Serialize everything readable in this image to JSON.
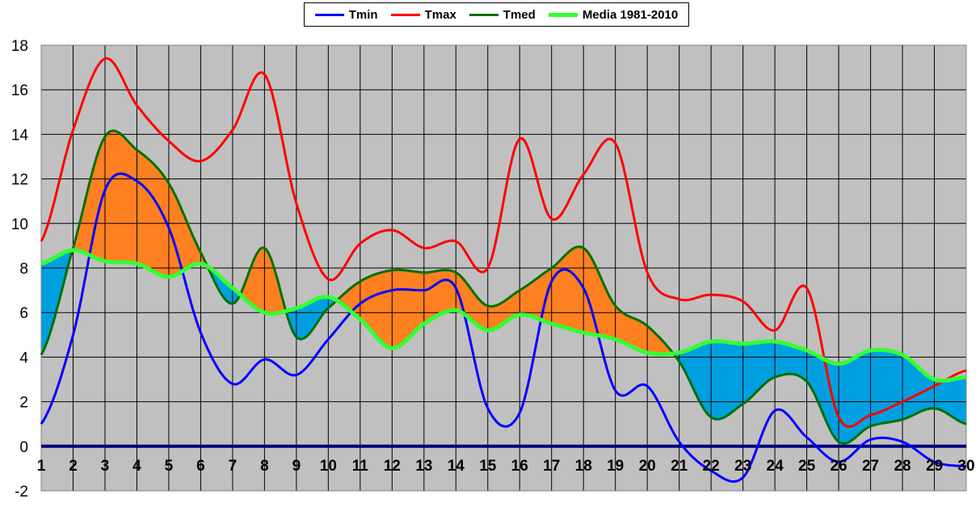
{
  "legend": {
    "tmin": "Tmin",
    "tmax": "Tmax",
    "tmed": "Tmed",
    "media": "Media 1981-2010"
  },
  "colors": {
    "tmin": "#0000ff",
    "tmax": "#ff0000",
    "tmed": "#007000",
    "media": "#33ff33",
    "above": "#ff8020",
    "below": "#00a0e0",
    "plot_bg": "#c0c0c0",
    "zero_line": "#000080"
  },
  "chart_data": {
    "type": "line",
    "title": "",
    "xlabel": "",
    "ylabel": "",
    "x": [
      1,
      2,
      3,
      4,
      5,
      6,
      7,
      8,
      9,
      10,
      11,
      12,
      13,
      14,
      15,
      16,
      17,
      18,
      19,
      20,
      21,
      22,
      23,
      24,
      25,
      26,
      27,
      28,
      29,
      30
    ],
    "xlim": [
      1,
      30
    ],
    "ylim": [
      -2,
      18
    ],
    "yticks": [
      -2,
      0,
      2,
      4,
      6,
      8,
      10,
      12,
      14,
      16,
      18
    ],
    "grid": true,
    "legend_position": "top-center",
    "fill_between": {
      "upper": "Tmed",
      "lower": "Media 1981-2010",
      "above_color": "orange",
      "below_color": "blue"
    },
    "series": [
      {
        "name": "Tmin",
        "values": [
          1.0,
          5.0,
          11.5,
          11.9,
          9.8,
          5.1,
          2.8,
          3.9,
          3.2,
          4.8,
          6.4,
          7.0,
          7.0,
          7.1,
          1.7,
          1.5,
          7.4,
          7.1,
          2.5,
          2.7,
          0.2,
          -1.1,
          -1.4,
          1.6,
          0.4,
          -0.7,
          0.3,
          0.2,
          -0.7,
          -0.9
        ]
      },
      {
        "name": "Tmax",
        "values": [
          9.2,
          14.2,
          17.4,
          15.3,
          13.7,
          12.8,
          14.2,
          16.7,
          10.9,
          7.5,
          9.1,
          9.7,
          8.9,
          9.2,
          8.0,
          13.8,
          10.2,
          12.2,
          13.6,
          7.8,
          6.6,
          6.8,
          6.5,
          5.2,
          7.1,
          1.3,
          1.4,
          2.0,
          2.7,
          3.4
        ]
      },
      {
        "name": "Tmed",
        "values": [
          4.1,
          8.9,
          13.9,
          13.3,
          11.8,
          8.7,
          6.4,
          8.9,
          4.9,
          6.2,
          7.4,
          7.9,
          7.8,
          7.8,
          6.3,
          7.0,
          8.0,
          8.9,
          6.3,
          5.4,
          3.8,
          1.3,
          1.9,
          3.1,
          2.9,
          0.2,
          0.9,
          1.2,
          1.7,
          1.0
        ]
      },
      {
        "name": "Media 1981-2010",
        "values": [
          8.2,
          8.8,
          8.3,
          8.2,
          7.6,
          8.2,
          7.1,
          6.0,
          6.2,
          6.7,
          5.7,
          4.4,
          5.5,
          6.1,
          5.2,
          5.9,
          5.5,
          5.1,
          4.8,
          4.2,
          4.2,
          4.7,
          4.6,
          4.7,
          4.3,
          3.7,
          4.3,
          4.1,
          3.0,
          3.1
        ]
      }
    ]
  }
}
